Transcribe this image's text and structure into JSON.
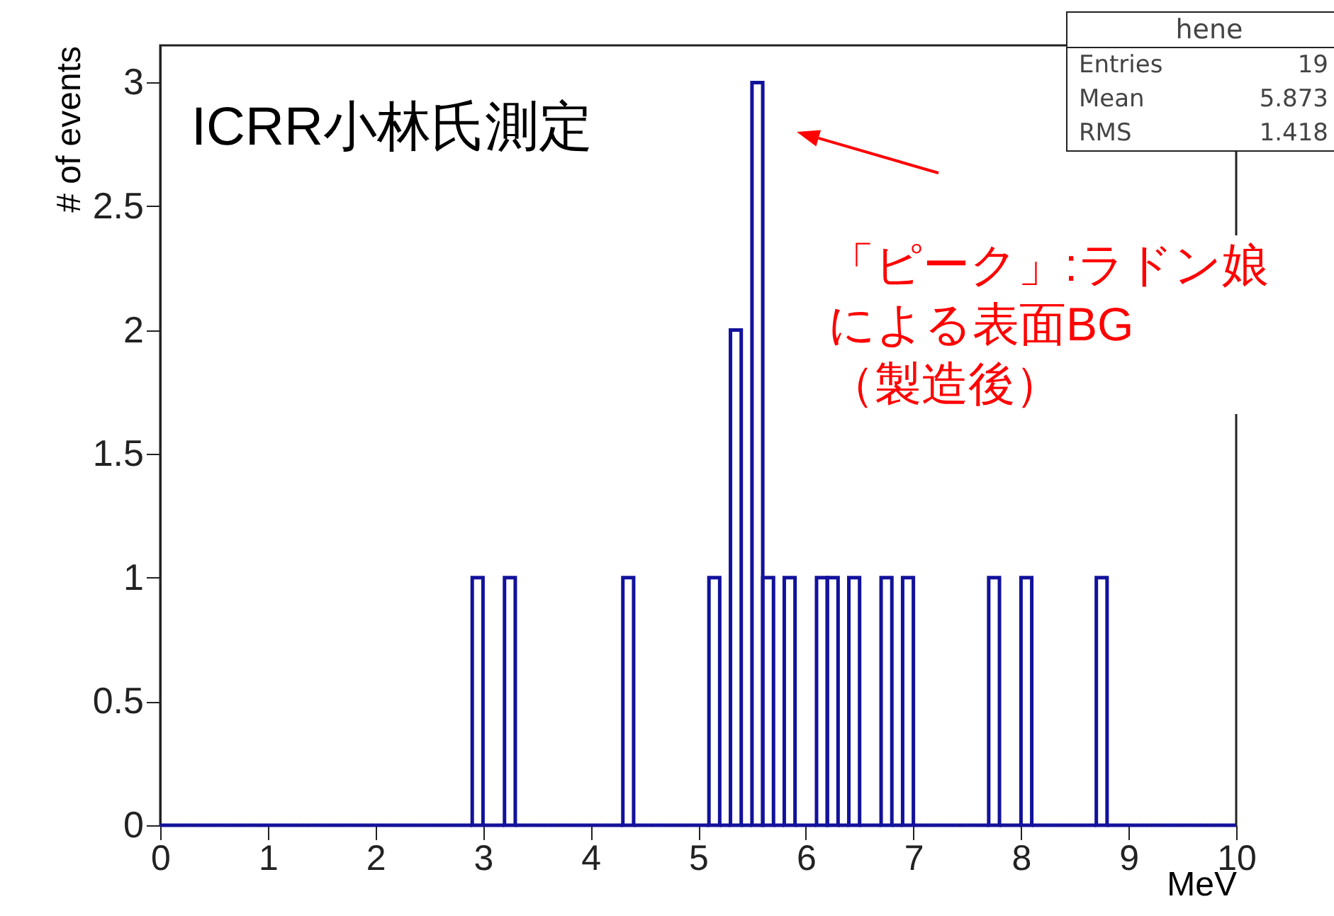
{
  "chart_data": {
    "type": "histogram",
    "xlabel": "MeV",
    "ylabel": "# of events",
    "color": "#12129c",
    "bins": [
      0,
      0.1,
      0.2,
      0.3,
      0.4,
      0.5,
      0.6,
      0.7,
      0.8,
      0.9,
      1,
      1.1,
      1.2,
      1.3,
      1.4,
      1.5,
      1.6,
      1.7,
      1.8,
      1.9,
      2,
      2.1,
      2.2,
      2.3,
      2.4,
      2.5,
      2.6,
      2.7,
      2.8,
      2.9,
      3,
      3.1,
      3.2,
      3.3,
      3.4,
      3.5,
      3.6,
      3.7,
      3.8,
      3.9,
      4,
      4.1,
      4.2,
      4.3,
      4.4,
      4.5,
      4.6,
      4.7,
      4.8,
      4.9,
      5,
      5.1,
      5.2,
      5.3,
      5.4,
      5.5,
      5.6,
      5.7,
      5.8,
      5.9,
      6,
      6.1,
      6.2,
      6.3,
      6.4,
      6.5,
      6.6,
      6.7,
      6.8,
      6.9,
      7,
      7.1,
      7.2,
      7.3,
      7.4,
      7.5,
      7.6,
      7.7,
      7.8,
      7.9,
      8,
      8.1,
      8.2,
      8.3,
      8.4,
      8.5,
      8.6,
      8.7,
      8.8,
      8.9,
      9,
      9.1,
      9.2,
      9.3,
      9.4,
      9.5,
      9.6,
      9.7,
      9.8,
      9.9,
      10
    ],
    "values": [
      0,
      0,
      0,
      0,
      0,
      0,
      0,
      0,
      0,
      0,
      0,
      0,
      0,
      0,
      0,
      0,
      0,
      0,
      0,
      0,
      0,
      0,
      0,
      0,
      0,
      0,
      0,
      0,
      0,
      1,
      0,
      0,
      1,
      0,
      0,
      0,
      0,
      0,
      0,
      0,
      0,
      0,
      0,
      1,
      0,
      0,
      0,
      0,
      0,
      0,
      0,
      1,
      0,
      2,
      0,
      3,
      1,
      0,
      1,
      0,
      0,
      1,
      1,
      0,
      1,
      0,
      0,
      1,
      0,
      1,
      0,
      0,
      0,
      0,
      0,
      0,
      0,
      1,
      0,
      0,
      1,
      0,
      0,
      0,
      0,
      0,
      0,
      1,
      0,
      0,
      0,
      0,
      0,
      0,
      0,
      0,
      0,
      0,
      0,
      0
    ],
    "xlim": [
      0,
      10
    ],
    "xticks": [
      0,
      1,
      2,
      3,
      4,
      5,
      6,
      7,
      8,
      9,
      10
    ],
    "ylim": [
      0,
      3.15
    ],
    "yticks": [
      0,
      0.5,
      1,
      1.5,
      2,
      2.5,
      3
    ],
    "annotations": [
      "hene",
      "Entries",
      "19",
      "Mean",
      "5.873",
      "RMS",
      "1.418",
      "ICRR小林氏測定",
      "「ピーク」:ラドン娘による表面BG（製造後）"
    ]
  }
}
